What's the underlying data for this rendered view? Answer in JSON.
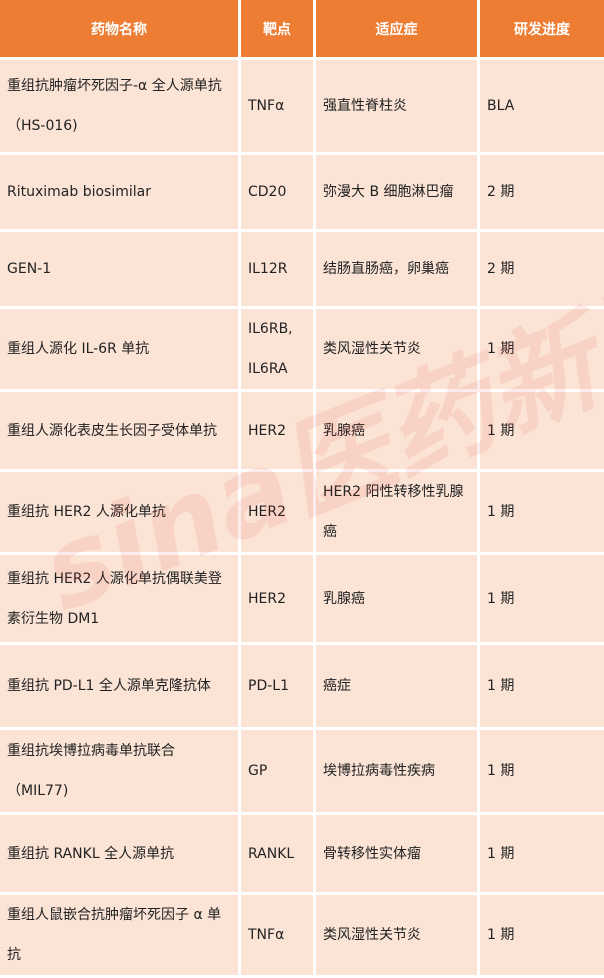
{
  "table": {
    "headers": [
      "药物名称",
      "靶点",
      "适应症",
      "研发进度"
    ],
    "rows": [
      {
        "name": "重组抗肿瘤坏死因子-α 全人源单抗（HS-016)",
        "target": "TNFα",
        "indication": "强直性脊柱炎",
        "stage": "BLA"
      },
      {
        "name": "Rituximab biosimilar",
        "target": "CD20",
        "indication": "弥漫大 B 细胞淋巴瘤",
        "stage": "2 期"
      },
      {
        "name": "GEN-1",
        "target": "IL12R",
        "indication": "结肠直肠癌，卵巢癌",
        "stage": "2 期"
      },
      {
        "name": "重组人源化 IL-6R 单抗",
        "target": "IL6RB, IL6RA",
        "indication": "类风湿性关节炎",
        "stage": "1 期"
      },
      {
        "name": "重组人源化表皮生长因子受体单抗",
        "target": "HER2",
        "indication": "乳腺癌",
        "stage": "1 期"
      },
      {
        "name": "重组抗 HER2 人源化单抗",
        "target": "HER2",
        "indication": "HER2 阳性转移性乳腺癌",
        "stage": "1 期"
      },
      {
        "name": "重组抗 HER2 人源化单抗偶联美登素衍生物 DM1",
        "target": "HER2",
        "indication": "乳腺癌",
        "stage": "1 期"
      },
      {
        "name": "重组抗 PD-L1 全人源单克隆抗体",
        "target": "PD-L1",
        "indication": "癌症",
        "stage": "1 期"
      },
      {
        "name": "重组抗埃博拉病毒单抗联合（MIL77)",
        "target": "GP",
        "indication": "埃博拉病毒性疾病",
        "stage": "1 期"
      },
      {
        "name": "重组抗 RANKL 全人源单抗",
        "target": "RANKL",
        "indication": "骨转移性实体瘤",
        "stage": "1 期"
      },
      {
        "name": "重组人鼠嵌合抗肿瘤坏死因子 α 单抗",
        "target": "TNFα",
        "indication": "类风湿性关节炎",
        "stage": "1 期"
      }
    ]
  },
  "watermark": "sina医药新闻",
  "colors": {
    "header": "#EC7D33",
    "row": "#FBE4D6"
  }
}
